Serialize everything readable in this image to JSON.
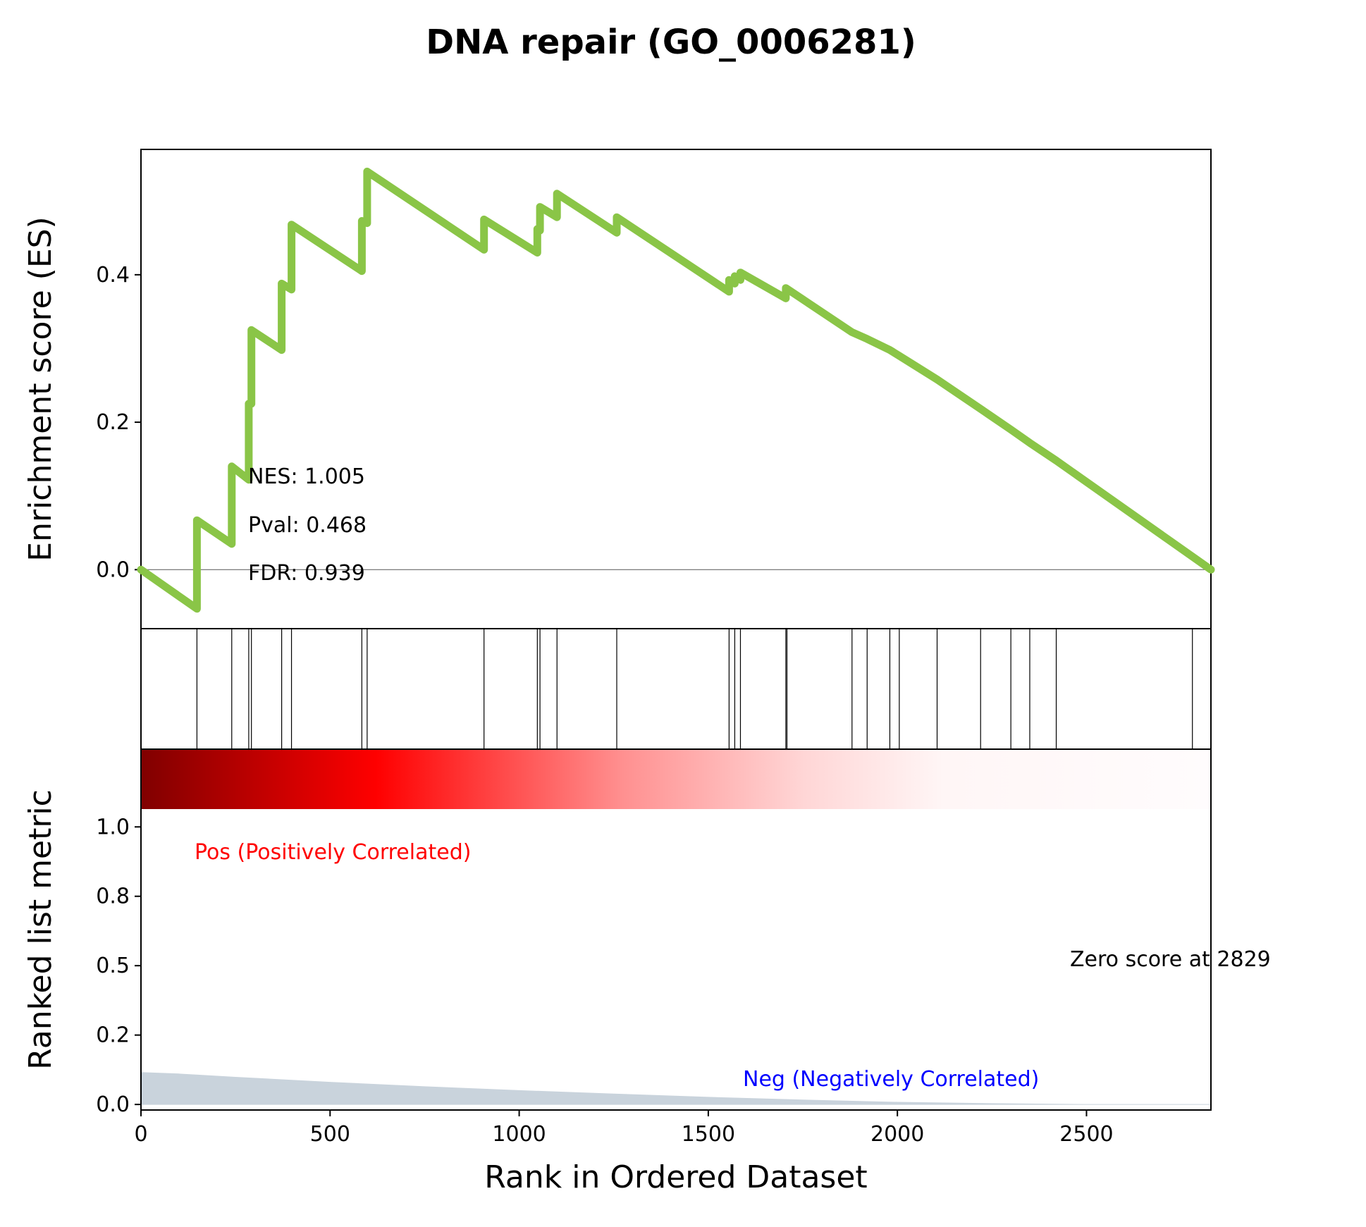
{
  "chart_data": {
    "type": "line",
    "title": "DNA repair (GO_0006281)",
    "xlabel": "Rank in Ordered Dataset",
    "ylabel_top": "Enrichment score (ES)",
    "ylabel_bottom": "Ranked list metric",
    "xlim": [
      0,
      2829
    ],
    "ylim_es": [
      -0.08,
      0.57
    ],
    "ylim_rank": [
      -0.02,
      1.28
    ],
    "x_ticks": [
      "0",
      "500",
      "1000",
      "1500",
      "2000",
      "2500"
    ],
    "x_tick_values": [
      0,
      500,
      1000,
      1500,
      2000,
      2500
    ],
    "y_ticks_es": [
      "0.0",
      "0.2",
      "0.4"
    ],
    "y_tick_values_es": [
      0.0,
      0.2,
      0.4
    ],
    "y_ticks_rank": [
      "0.0",
      "0.2",
      "0.5",
      "0.8",
      "1.0"
    ],
    "y_tick_values_rank": [
      0.0,
      0.25,
      0.5,
      0.75,
      1.0
    ],
    "line_color": "#8ac547",
    "es_points": [
      [
        0,
        0.0
      ],
      [
        148,
        -0.053
      ],
      [
        148,
        0.067
      ],
      [
        240,
        0.035
      ],
      [
        240,
        0.14
      ],
      [
        285,
        0.122
      ],
      [
        285,
        0.225
      ],
      [
        292,
        0.225
      ],
      [
        292,
        0.325
      ],
      [
        372,
        0.298
      ],
      [
        372,
        0.388
      ],
      [
        398,
        0.38
      ],
      [
        398,
        0.468
      ],
      [
        584,
        0.405
      ],
      [
        584,
        0.473
      ],
      [
        598,
        0.47
      ],
      [
        598,
        0.54
      ],
      [
        907,
        0.434
      ],
      [
        907,
        0.475
      ],
      [
        1048,
        0.43
      ],
      [
        1048,
        0.462
      ],
      [
        1055,
        0.46
      ],
      [
        1055,
        0.492
      ],
      [
        1100,
        0.478
      ],
      [
        1100,
        0.51
      ],
      [
        1258,
        0.457
      ],
      [
        1258,
        0.478
      ],
      [
        1555,
        0.377
      ],
      [
        1555,
        0.393
      ],
      [
        1570,
        0.388
      ],
      [
        1570,
        0.398
      ],
      [
        1585,
        0.393
      ],
      [
        1585,
        0.403
      ],
      [
        1705,
        0.368
      ],
      [
        1705,
        0.382
      ],
      [
        1880,
        0.322
      ],
      [
        1920,
        0.313
      ],
      [
        1980,
        0.298
      ],
      [
        2005,
        0.29
      ],
      [
        2105,
        0.258
      ],
      [
        2220,
        0.218
      ],
      [
        2300,
        0.19
      ],
      [
        2350,
        0.172
      ],
      [
        2420,
        0.148
      ],
      [
        2829,
        0.0
      ]
    ],
    "hit_positions": [
      148,
      240,
      285,
      292,
      372,
      398,
      584,
      598,
      907,
      1048,
      1055,
      1100,
      1258,
      1555,
      1570,
      1585,
      1705,
      1708,
      1880,
      1920,
      1980,
      2005,
      2105,
      2220,
      2300,
      2350,
      2420,
      2780
    ],
    "ranked_metric": [
      [
        0,
        0.115
      ],
      [
        100,
        0.11
      ],
      [
        250,
        0.098
      ],
      [
        500,
        0.08
      ],
      [
        750,
        0.064
      ],
      [
        1000,
        0.05
      ],
      [
        1250,
        0.038
      ],
      [
        1500,
        0.026
      ],
      [
        1750,
        0.016
      ],
      [
        2000,
        0.008
      ],
      [
        2250,
        0.003
      ],
      [
        2500,
        0.0
      ],
      [
        2829,
        0.0
      ]
    ],
    "ranked_metric_color": "#c9d3dc",
    "stats": {
      "nes": "NES: 1.005",
      "pval": "Pval: 0.468",
      "fdr": "FDR: 0.939"
    },
    "pos_label": "Pos (Positively Correlated)",
    "neg_label": "Neg (Negatively Correlated)",
    "zero_label": "Zero score at 2829",
    "pos_color": "#ff0000",
    "neg_color": "#0000ff"
  }
}
